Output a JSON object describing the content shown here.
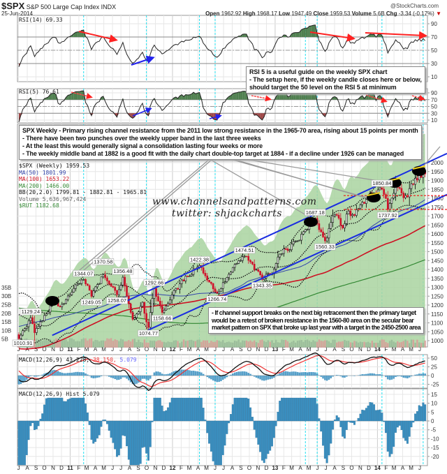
{
  "header": {
    "symbol": "$SPX",
    "name": "S&P 500 Large Cap Index INDX",
    "date": "25-Jun-2014",
    "source": "@StockCharts.com",
    "open_label": "Open",
    "open": "1962.92",
    "high_label": "High",
    "high": "1968.17",
    "low_label": "Low",
    "low": "1947.49",
    "close_label": "Close",
    "close": "1959.53",
    "volume_label": "Volume",
    "volume": "5.6B",
    "chg_label": "Chg",
    "chg": "-3.34 (-0.17%)",
    "chg_arrow": "▼"
  },
  "notes": {
    "rsi5": [
      "RSI 5 is a useful guide on the weekly SPX chart",
      "- The setup here, if the weekly candle closes here or below,",
      "should target the 50 level on the RSI 5 at minimum"
    ],
    "weekly": [
      "SPX Weekly - Primary rising channel resistance from the 2011 low  strong resistance in the 1965-70 area, rising about 15 points per month",
      "- There have been two punches over the weekly upper band in the last three weeks",
      "- At the least this would generally signal a consolidation lasting four weeks or more",
      "- The weekly middle band at 1882 is a good fit with the daily chart double-top target at 1884 - if a decline under 1926 can be managed"
    ],
    "channel": [
      "- If channel support breaks on the next big retracement then the primary target",
      "would be a retest of broken resistance in the 1560-80 area on the secular bear",
      "market pattern on SPX that broke up last year with a target in the 2450-2500 area"
    ]
  },
  "watermark": {
    "site": "www.channelsandpatterns.com",
    "twitter": "twitter: shjackcharts"
  },
  "colors": {
    "up": "#000000",
    "down": "#d0102a",
    "ma50": "#3344aa",
    "ma100": "#cc1122",
    "ma200": "#338833",
    "rut_fill": "#a9d3a0",
    "rsi_up": "#4f7f4f",
    "rsi_down": "#a04848",
    "macd": "#111111",
    "signal": "#ee3333",
    "hist": "#3a8fc0",
    "channel": "#1a2de0",
    "marker": "#22e0f0"
  },
  "chart_data": [
    {
      "type": "line",
      "panel": "RSI(14)",
      "legend": "RSI(14) 69.33",
      "yticks": [
        "90",
        "70",
        "50",
        "30",
        "10"
      ],
      "ylim": [
        0,
        100
      ],
      "bands": [
        30,
        50,
        70
      ]
    },
    {
      "type": "line",
      "panel": "RSI(5)",
      "legend": "RSI(5) 76.61",
      "yticks": [
        "90",
        "70",
        "50",
        "30",
        "10"
      ],
      "ylim": [
        0,
        100
      ],
      "bands": [
        30,
        50,
        70
      ]
    },
    {
      "type": "candlestick",
      "panel": "price",
      "legend": {
        "price": "$SPX (Weekly) 1959.53",
        "ma50": "MA(50) 1801.99",
        "ma100": "MA(100) 1653.22",
        "ma200": "MA(200) 1466.00",
        "bb": "BB(20,2.0) 1799.81 - 1882.81 - 1965.81",
        "volume": "Volume 5,636,967,424",
        "rut": "$RUT 1182.68"
      },
      "yticks": [
        "2000",
        "1950",
        "1900",
        "1850",
        "1800",
        "1750",
        "1700",
        "1650",
        "1600",
        "1550",
        "1500",
        "1450",
        "1400",
        "1350",
        "1300",
        "1250",
        "1200",
        "1150",
        "1100",
        "1050",
        "1000"
      ],
      "volume_ticks": [
        "35B",
        "30B",
        "25B",
        "20B",
        "15B",
        "10B",
        "5B"
      ],
      "ylim": [
        950,
        2010
      ],
      "pivots": [
        {
          "date": "2010-07-02",
          "value": 1010.91,
          "label": "1010.91"
        },
        {
          "date": "2010-08-13",
          "value": 1129.24,
          "label": "1129.24"
        },
        {
          "date": "2010-08-27",
          "value": 1045
        },
        {
          "date": "2010-11-05",
          "value": 1225
        },
        {
          "date": "2010-11-26",
          "value": 1190
        },
        {
          "date": "2010-12-31",
          "value": 1258
        },
        {
          "date": "2011-02-18",
          "value": 1344.07,
          "label": "1344.07"
        },
        {
          "date": "2011-03-18",
          "value": 1249.05,
          "label": "1249.05"
        },
        {
          "date": "2011-04-29",
          "value": 1370.58,
          "label": "1370.58"
        },
        {
          "date": "2011-06-17",
          "value": 1258.07,
          "label": "1258.07"
        },
        {
          "date": "2011-07-08",
          "value": 1356.48,
          "label": "1356.48"
        },
        {
          "date": "2011-08-12",
          "value": 1120
        },
        {
          "date": "2011-09-16",
          "value": 1216
        },
        {
          "date": "2011-10-07",
          "value": 1074.77,
          "label": "1074.77"
        },
        {
          "date": "2011-10-28",
          "value": 1292.66,
          "label": "1292.66"
        },
        {
          "date": "2011-11-25",
          "value": 1158.66,
          "label": "1158.66"
        },
        {
          "date": "2011-12-30",
          "value": 1258
        },
        {
          "date": "2012-03-16",
          "value": 1404
        },
        {
          "date": "2012-04-06",
          "value": 1422.38,
          "label": "1422.38"
        },
        {
          "date": "2012-06-08",
          "value": 1266.74,
          "label": "1266.74"
        },
        {
          "date": "2012-07-27",
          "value": 1385
        },
        {
          "date": "2012-09-14",
          "value": 1474.51,
          "label": "1474.51"
        },
        {
          "date": "2012-11-16",
          "value": 1343.35,
          "label": "1343.35"
        },
        {
          "date": "2012-12-28",
          "value": 1402
        },
        {
          "date": "2013-01-11",
          "value": 1470
        },
        {
          "date": "2013-03-15",
          "value": 1560
        },
        {
          "date": "2013-05-24",
          "value": 1687.18,
          "label": "1687.18"
        },
        {
          "date": "2013-06-28",
          "value": 1560.33,
          "label": "1560.33"
        },
        {
          "date": "2013-08-02",
          "value": 1709
        },
        {
          "date": "2013-08-30",
          "value": 1633
        },
        {
          "date": "2013-09-20",
          "value": 1729
        },
        {
          "date": "2013-10-11",
          "value": 1703
        },
        {
          "date": "2013-11-29",
          "value": 1808
        },
        {
          "date": "2014-01-17",
          "value": 1850.84,
          "label": "1850.84"
        },
        {
          "date": "2014-02-07",
          "value": 1737.92,
          "label": "1737.92"
        },
        {
          "date": "2014-03-07",
          "value": 1878
        },
        {
          "date": "2014-04-11",
          "value": 1815
        },
        {
          "date": "2014-05-09",
          "value": 1878
        },
        {
          "date": "2014-06-27",
          "value": 1959.53
        }
      ],
      "support_levels": [
        1815,
        1737
      ],
      "channel": {
        "upper": [
          {
            "date": "2010-10-29",
            "value": 1030
          },
          {
            "date": "2014-06-27",
            "value": 2000
          }
        ],
        "lower": [
          {
            "date": "2011-10-07",
            "value": 1060
          },
          {
            "date": "2014-06-27",
            "value": 1770
          }
        ]
      }
    },
    {
      "type": "line",
      "panel": "MACD",
      "legend": {
        "macd": "MACD(12,26,9) 43.228,",
        "signal": "38.150,",
        "hist": "5.079"
      },
      "yticks": [
        "50",
        "25",
        "0",
        "-25"
      ],
      "ylim": [
        -40,
        60
      ]
    },
    {
      "type": "bar",
      "panel": "MACD Hist",
      "legend": "MACD(12,26,9) Hist 5.079",
      "yticks": [
        "15",
        "10",
        "5",
        "0",
        "-5",
        "-10",
        "-15",
        "-20"
      ],
      "ylim": [
        -25,
        18
      ]
    }
  ],
  "x_axis": {
    "months": [
      "J",
      "A",
      "S",
      "O",
      "N",
      "D",
      "11",
      "F",
      "M",
      "A",
      "M",
      "J",
      "J",
      "A",
      "S",
      "O",
      "N",
      "D",
      "12",
      "F",
      "M",
      "A",
      "M",
      "J",
      "J",
      "A",
      "S",
      "O",
      "N",
      "D",
      "13",
      "F",
      "M",
      "A",
      "M",
      "J",
      "J",
      "A",
      "S",
      "O",
      "N",
      "D",
      "14",
      "F",
      "M",
      "A",
      "M",
      "J"
    ]
  }
}
